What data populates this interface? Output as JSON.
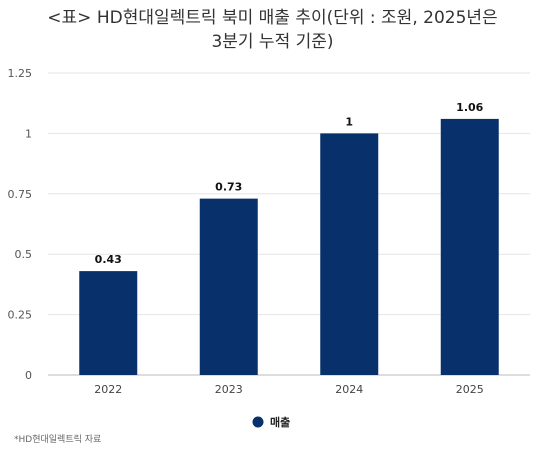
{
  "chart_data": {
    "type": "bar",
    "title_line1": "<표> HD현대일렉트릭 북미 매출 추이(단위 : 조원, 2025년은",
    "title_line2": "3분기 누적 기준)",
    "categories": [
      "2022",
      "2023",
      "2024",
      "2025"
    ],
    "series": [
      {
        "name": "매출",
        "values": [
          0.43,
          0.73,
          1,
          1.06
        ],
        "labels": [
          "0.43",
          "0.73",
          "1",
          "1.06"
        ]
      }
    ],
    "ylim": [
      0,
      1.25
    ],
    "yticks": [
      0,
      0.25,
      0.5,
      0.75,
      1,
      1.25
    ],
    "ytick_labels": [
      "0",
      "0.25",
      "0.5",
      "0.75",
      "1",
      "1.25"
    ],
    "grid": true,
    "legend_position": "bottom",
    "bar_color": "#08306b"
  },
  "source_note": "*HD현대일렉트릭 자료"
}
